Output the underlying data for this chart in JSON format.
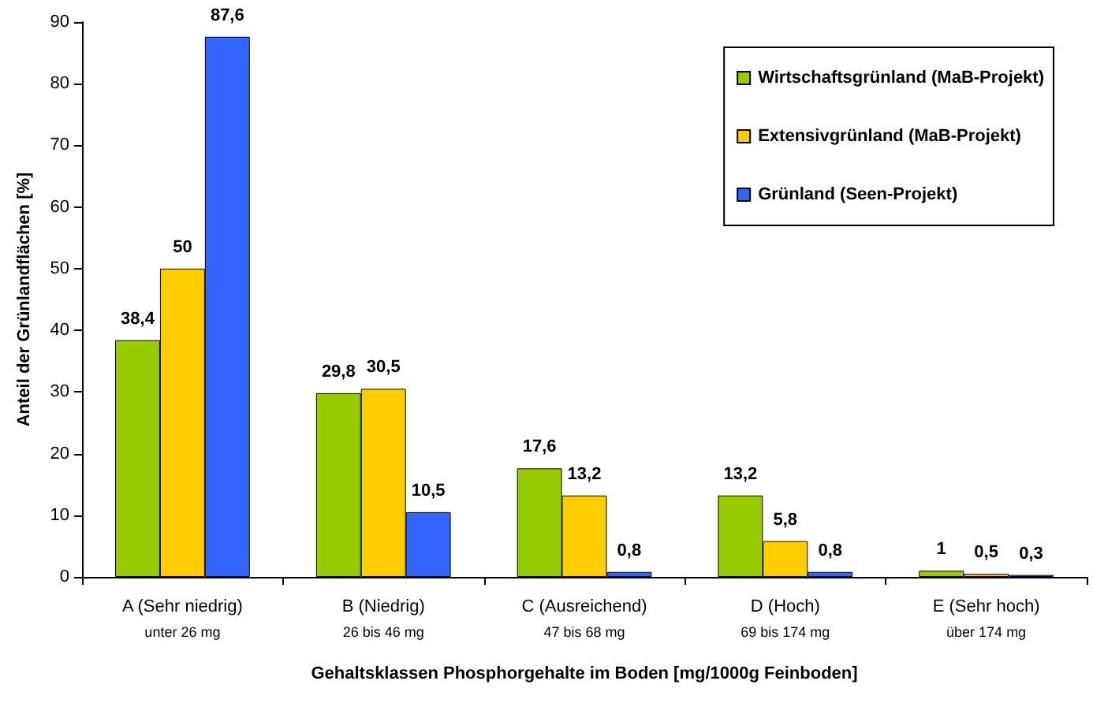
{
  "chart_data": {
    "type": "bar",
    "xlabel": "Gehaltsklassen Phosphorgehalte im Boden [mg/1000g Feinboden]",
    "ylabel": "Anteil der Grünlandflächen [%]",
    "categories": [
      "A (Sehr niedrig)\nunter 26 mg",
      "B (Niedrig)\n26 bis 46 mg",
      "C (Ausreichend)\n47 bis 68 mg",
      "D (Hoch)\n69 bis 174 mg",
      "E (Sehr hoch)\nüber 174 mg"
    ],
    "series": [
      {
        "name": "Wirtschaftsgrünland (MaB-Projekt)",
        "color": "#99cc00",
        "values": [
          38.4,
          29.8,
          17.6,
          13.2,
          1
        ],
        "value_labels": [
          "38,4",
          "29,8",
          "17,6",
          "13,2",
          "1"
        ]
      },
      {
        "name": "Extensivgrünland (MaB-Projekt)",
        "color": "#ffcc00",
        "values": [
          50,
          30.5,
          13.2,
          5.8,
          0.5
        ],
        "value_labels": [
          "50",
          "30,5",
          "13,2",
          "5,8",
          "0,5"
        ]
      },
      {
        "name": "Grünland (Seen-Projekt)",
        "color": "#3366ff",
        "values": [
          87.6,
          10.5,
          0.8,
          0.8,
          0.3
        ],
        "value_labels": [
          "87,6",
          "10,5",
          "0,8",
          "0,8",
          "0,3"
        ]
      }
    ],
    "ylim": [
      0,
      90
    ],
    "yticks": [
      0,
      10,
      20,
      30,
      40,
      50,
      60,
      70,
      80,
      90
    ],
    "grid": false,
    "legend": "top right"
  }
}
